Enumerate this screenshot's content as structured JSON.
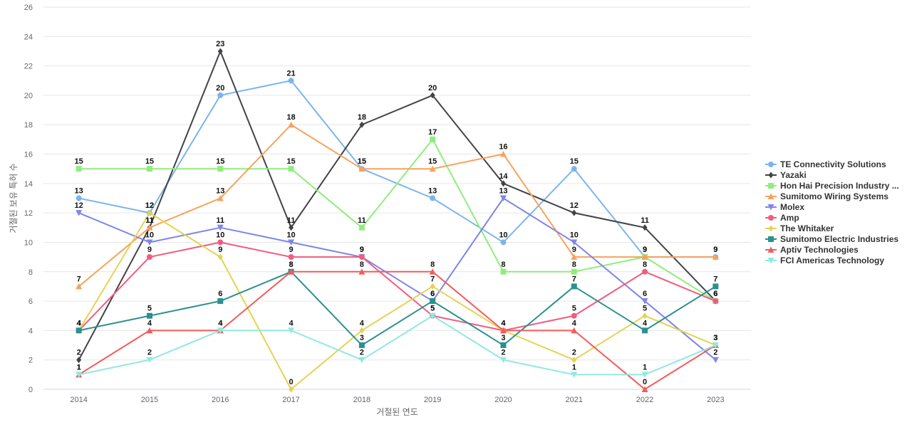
{
  "chart_data": {
    "type": "line",
    "xlabel": "거절된 연도",
    "ylabel": "거절된 보유 특허 수",
    "ylim": [
      0,
      26
    ],
    "yticks": [
      0,
      2,
      4,
      6,
      8,
      10,
      12,
      14,
      16,
      18,
      20,
      22,
      24,
      26
    ],
    "categories": [
      "2014",
      "2015",
      "2016",
      "2017",
      "2018",
      "2019",
      "2020",
      "2021",
      "2022",
      "2023"
    ],
    "grid": true,
    "legend_position": "right",
    "series": [
      {
        "name": "TE Connectivity Solutions",
        "color": "#7cb5ec",
        "marker": "circle",
        "values": [
          13,
          12,
          20,
          21,
          15,
          13,
          10,
          15,
          9,
          9
        ]
      },
      {
        "name": "Yazaki",
        "color": "#434348",
        "marker": "diamond",
        "values": [
          2,
          11,
          23,
          11,
          18,
          20,
          14,
          12,
          11,
          6
        ]
      },
      {
        "name": "Hon Hai Precision Industry ...",
        "color": "#90ed7d",
        "marker": "square",
        "values": [
          15,
          15,
          15,
          15,
          11,
          17,
          8,
          8,
          9,
          6
        ]
      },
      {
        "name": "Sumitomo Wiring Systems",
        "color": "#f7a35c",
        "marker": "triangle",
        "values": [
          7,
          11,
          13,
          18,
          15,
          15,
          16,
          9,
          9,
          9
        ]
      },
      {
        "name": "Molex",
        "color": "#8085e9",
        "marker": "triangle-down",
        "values": [
          12,
          10,
          11,
          10,
          9,
          6,
          13,
          10,
          6,
          2
        ]
      },
      {
        "name": "Amp",
        "color": "#f15c80",
        "marker": "circle",
        "values": [
          4,
          9,
          10,
          9,
          9,
          5,
          4,
          5,
          8,
          6
        ]
      },
      {
        "name": "The Whitaker",
        "color": "#e4d354",
        "marker": "diamond",
        "values": [
          4,
          12,
          9,
          0,
          4,
          7,
          4,
          2,
          5,
          3
        ]
      },
      {
        "name": "Sumitomo Electric Industries",
        "color": "#2b908f",
        "marker": "square",
        "values": [
          4,
          5,
          6,
          8,
          3,
          6,
          3,
          7,
          4,
          7
        ]
      },
      {
        "name": "Aptiv Technologies",
        "color": "#f45b5b",
        "marker": "triangle",
        "values": [
          1,
          4,
          4,
          8,
          8,
          8,
          4,
          4,
          0,
          3
        ]
      },
      {
        "name": "FCI Americas Technology",
        "color": "#91e8e1",
        "marker": "triangle-down",
        "values": [
          1,
          2,
          4,
          4,
          2,
          5,
          2,
          1,
          1,
          3
        ]
      }
    ]
  }
}
